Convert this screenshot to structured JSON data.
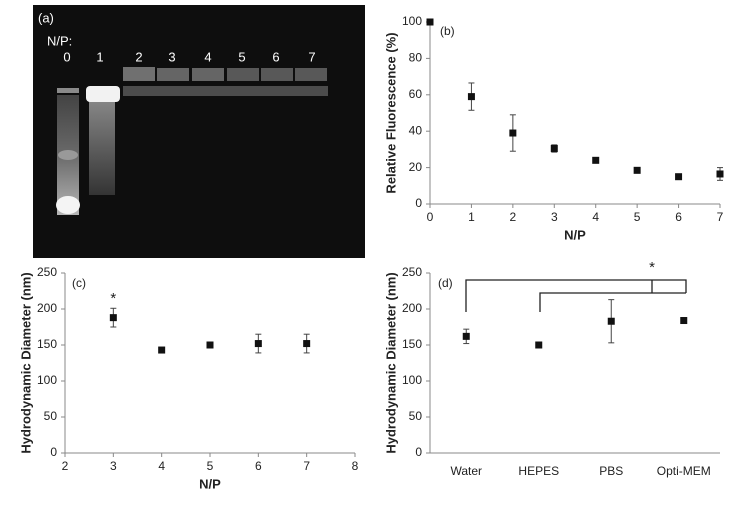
{
  "gel": {
    "label": "(a)",
    "axis_label": "N/P:",
    "lanes": [
      "0",
      "1",
      "2",
      "3",
      "4",
      "5",
      "6",
      "7"
    ]
  },
  "chart_data": [
    {
      "type": "scatter",
      "panel_label": "(b)",
      "x_label": "N/P",
      "y_label": "Relative Fluorescence (%)",
      "x": [
        0,
        1,
        2,
        3,
        4,
        5,
        6,
        7
      ],
      "values": [
        100,
        59,
        39,
        30.5,
        24,
        18.5,
        15,
        16.5
      ],
      "errors": [
        0,
        7.5,
        10,
        2,
        0.5,
        0.5,
        0.5,
        3.5
      ],
      "color": "#111",
      "xlim": [
        0,
        7
      ],
      "xticks": [
        0,
        1,
        2,
        3,
        4,
        5,
        6,
        7
      ],
      "ylim": [
        0,
        100
      ],
      "yticks": [
        0,
        20,
        40,
        60,
        80,
        100
      ]
    },
    {
      "type": "scatter",
      "panel_label": "(c)",
      "x_label": "N/P",
      "y_label": "Hydrodynamic Diameter (nm)",
      "x": [
        3,
        4,
        5,
        6,
        7
      ],
      "values": [
        188,
        143,
        150,
        152,
        152
      ],
      "errors": [
        13,
        2,
        3,
        13,
        13
      ],
      "annotation": "*",
      "color": "#111",
      "xlim": [
        2,
        8
      ],
      "xticks": [
        2,
        3,
        4,
        5,
        6,
        7,
        8
      ],
      "ylim": [
        0,
        250
      ],
      "yticks": [
        0,
        50,
        100,
        150,
        200,
        250
      ]
    },
    {
      "type": "scatter",
      "panel_label": "(d)",
      "y_label": "Hydrodynamic Diameter (nm)",
      "categories": [
        "Water",
        "HEPES",
        "PBS",
        "Opti-MEM"
      ],
      "values": [
        162,
        150,
        183,
        184
      ],
      "errors": [
        10,
        2,
        30,
        3
      ],
      "annotation": "*",
      "color": "#111",
      "ylim": [
        0,
        250
      ],
      "yticks": [
        0,
        50,
        100,
        150,
        200,
        250
      ]
    }
  ]
}
